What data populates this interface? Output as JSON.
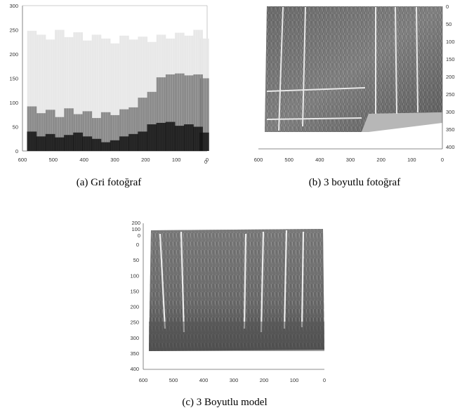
{
  "figures": [
    {
      "id": "a",
      "caption": "(a) Gri fotoğraf",
      "x_ticks": [
        "600",
        "500",
        "400",
        "300",
        "200",
        "100",
        "0"
      ],
      "x_end_label": "0",
      "y_ticks": [
        "0",
        "50",
        "100",
        "150",
        "200",
        "250",
        "300"
      ]
    },
    {
      "id": "b",
      "caption": "(b) 3 boyutlu fotoğraf",
      "x_ticks": [
        "600",
        "500",
        "400",
        "300",
        "200",
        "100",
        "0"
      ],
      "y_ticks": [
        "0",
        "50",
        "100",
        "150",
        "200",
        "250",
        "300",
        "350",
        "400"
      ]
    },
    {
      "id": "c",
      "caption": "(c) 3 Boyutlu model",
      "x_ticks": [
        "600",
        "500",
        "400",
        "300",
        "200",
        "100",
        "0"
      ],
      "y_ticks": [
        "0",
        "50",
        "100",
        "150",
        "200",
        "250",
        "300",
        "350",
        "400"
      ],
      "z_ticks": [
        "200",
        "100",
        "0"
      ]
    }
  ],
  "chart_data": [
    {
      "type": "area",
      "title": "",
      "xlabel": "",
      "ylabel": "",
      "xlim": [
        600,
        0
      ],
      "ylim": [
        0,
        300
      ],
      "grid": false,
      "x": [
        570,
        540,
        510,
        480,
        450,
        420,
        390,
        360,
        330,
        300,
        270,
        240,
        210,
        180,
        150,
        120,
        90,
        60,
        30,
        10
      ],
      "series": [
        {
          "values": [
            248,
            240,
            230,
            250,
            235,
            245,
            228,
            240,
            232,
            222,
            238,
            230,
            236,
            225,
            240,
            232,
            244,
            238,
            250,
            232
          ]
        },
        {
          "values": [
            92,
            78,
            85,
            70,
            88,
            76,
            82,
            68,
            80,
            74,
            86,
            90,
            110,
            122,
            152,
            158,
            160,
            156,
            158,
            150
          ]
        },
        {
          "values": [
            40,
            30,
            35,
            28,
            33,
            38,
            30,
            25,
            18,
            22,
            30,
            35,
            40,
            55,
            58,
            60,
            52,
            55,
            50,
            38
          ]
        }
      ]
    },
    {
      "type": "heatmap",
      "title": "",
      "xlim": [
        600,
        0
      ],
      "ylim": [
        400,
        0
      ],
      "x_ticks": [
        600,
        500,
        400,
        300,
        200,
        100,
        0
      ],
      "y_ticks": [
        0,
        50,
        100,
        150,
        200,
        250,
        300,
        350,
        400
      ]
    },
    {
      "type": "heatmap",
      "title": "",
      "xlim": [
        600,
        0
      ],
      "ylim": [
        400,
        0
      ],
      "zlim": [
        0,
        200
      ],
      "x_ticks": [
        600,
        500,
        400,
        300,
        200,
        100,
        0
      ],
      "y_ticks": [
        0,
        50,
        100,
        150,
        200,
        250,
        300,
        350,
        400
      ],
      "z_ticks": [
        200,
        100,
        0
      ]
    }
  ]
}
